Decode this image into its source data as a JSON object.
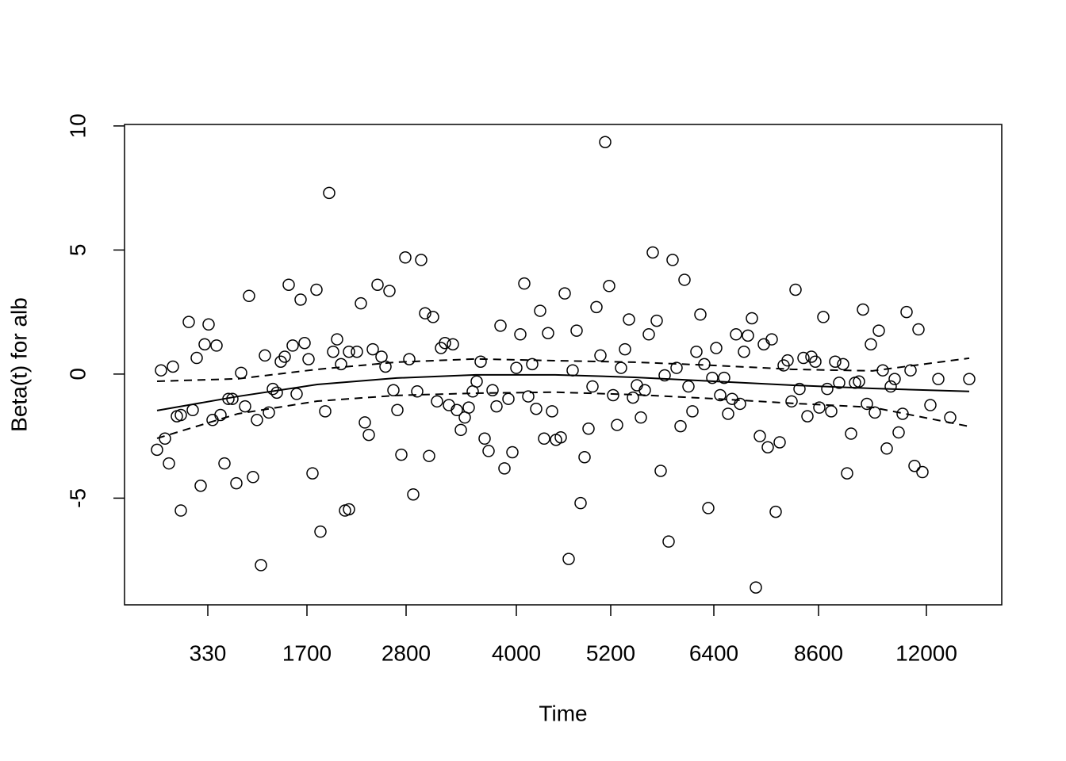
{
  "chart_data": {
    "type": "scatter",
    "xlabel": "Time",
    "ylabel": "Beta(t) for alb",
    "xlim": [
      -41,
      1065
    ],
    "xticks": [
      {
        "value": 64,
        "label": "330"
      },
      {
        "value": 189,
        "label": "1700"
      },
      {
        "value": 314,
        "label": "2800"
      },
      {
        "value": 453,
        "label": "4000"
      },
      {
        "value": 572,
        "label": "5200"
      },
      {
        "value": 702,
        "label": "6400"
      },
      {
        "value": 834,
        "label": "8600"
      },
      {
        "value": 970,
        "label": "12000"
      }
    ],
    "ylim": [
      -9.3,
      10.06
    ],
    "yticks": [
      -5,
      0,
      5,
      10
    ],
    "color": "#000000",
    "points": {
      "x": [
        0,
        5,
        10,
        15,
        20,
        25,
        30,
        30,
        40,
        45,
        50,
        55,
        60,
        65,
        70,
        75,
        80,
        85,
        90,
        95,
        100,
        106,
        111,
        116,
        121,
        126,
        131,
        136,
        141,
        146,
        151,
        156,
        161,
        166,
        171,
        176,
        181,
        186,
        191,
        196,
        201,
        206,
        212,
        217,
        222,
        227,
        232,
        237,
        242,
        242,
        252,
        257,
        262,
        267,
        272,
        278,
        283,
        288,
        293,
        298,
        303,
        308,
        313,
        318,
        323,
        328,
        333,
        338,
        343,
        348,
        353,
        358,
        363,
        368,
        373,
        378,
        383,
        388,
        393,
        398,
        403,
        408,
        413,
        418,
        423,
        428,
        433,
        438,
        443,
        448,
        453,
        458,
        463,
        468,
        473,
        478,
        483,
        488,
        493,
        498,
        503,
        509,
        514,
        519,
        524,
        529,
        534,
        539,
        544,
        549,
        554,
        559,
        565,
        570,
        575,
        580,
        585,
        590,
        595,
        600,
        605,
        610,
        615,
        620,
        625,
        630,
        635,
        640,
        645,
        650,
        655,
        660,
        665,
        670,
        675,
        680,
        685,
        690,
        695,
        700,
        705,
        710,
        715,
        720,
        725,
        730,
        735,
        740,
        745,
        750,
        755,
        760,
        765,
        770,
        775,
        780,
        785,
        790,
        795,
        800,
        805,
        810,
        815,
        820,
        825,
        830,
        835,
        840,
        845,
        850,
        855,
        860,
        865,
        870,
        875,
        880,
        885,
        890,
        895,
        900,
        905,
        910,
        915,
        920,
        925,
        930,
        935,
        940,
        945,
        950,
        955,
        960,
        965,
        975,
        985,
        1000,
        1024
      ],
      "values": [
        -3.05,
        0.15,
        -2.6,
        -3.6,
        0.3,
        -1.7,
        -5.5,
        -1.65,
        2.1,
        -1.45,
        0.65,
        -4.5,
        1.2,
        2.0,
        -1.85,
        1.15,
        -1.65,
        -3.6,
        -1.0,
        -1.0,
        -4.4,
        0.05,
        -1.3,
        3.15,
        -4.15,
        -1.85,
        -7.7,
        0.75,
        -1.55,
        -0.6,
        -0.75,
        0.5,
        0.7,
        3.6,
        1.15,
        -0.8,
        3.0,
        1.25,
        0.6,
        -4.0,
        3.4,
        -6.35,
        -1.5,
        7.3,
        0.9,
        1.4,
        0.4,
        -5.5,
        0.9,
        -5.45,
        0.9,
        2.85,
        -1.95,
        -2.45,
        1.0,
        3.6,
        0.7,
        0.3,
        3.35,
        -0.65,
        -1.45,
        -3.25,
        4.7,
        0.6,
        -4.85,
        -0.7,
        4.6,
        2.45,
        -3.3,
        2.3,
        -1.1,
        1.05,
        1.25,
        -1.25,
        1.2,
        -1.45,
        -2.25,
        -1.75,
        -1.35,
        -0.7,
        -0.3,
        0.5,
        -2.6,
        -3.1,
        -0.65,
        -1.3,
        1.95,
        -3.8,
        -1.0,
        -3.15,
        0.25,
        1.6,
        3.65,
        -0.9,
        0.4,
        -1.4,
        2.55,
        -2.6,
        1.65,
        -1.5,
        -2.65,
        -2.55,
        3.25,
        -7.45,
        0.15,
        1.75,
        -5.2,
        -3.35,
        -2.2,
        -0.5,
        2.7,
        0.75,
        9.35,
        3.55,
        -0.85,
        -2.05,
        0.25,
        1.0,
        2.2,
        -0.95,
        -0.45,
        -1.75,
        -0.65,
        1.6,
        4.9,
        2.15,
        -3.9,
        -0.05,
        -6.75,
        4.6,
        0.25,
        -2.1,
        3.8,
        -0.5,
        -1.5,
        0.9,
        2.4,
        0.4,
        -5.4,
        -0.15,
        1.05,
        -0.85,
        -0.15,
        -1.6,
        -1.0,
        1.6,
        -1.2,
        0.9,
        1.55,
        2.25,
        -8.6,
        -2.5,
        1.2,
        -2.95,
        1.4,
        -5.55,
        -2.75,
        0.35,
        0.55,
        -1.1,
        3.4,
        -0.6,
        0.65,
        -1.7,
        0.7,
        0.5,
        -1.35,
        2.3,
        -0.6,
        -1.5,
        0.5,
        -0.35,
        0.4,
        -4.0,
        -2.4,
        -0.35,
        -0.3,
        2.6,
        -1.2,
        1.2,
        -1.55,
        1.75,
        0.15,
        -3.0,
        -0.5,
        -0.2,
        -2.35,
        -1.6,
        2.5,
        0.15,
        -3.7,
        1.8,
        -3.95,
        -1.25,
        -0.2,
        -1.75,
        -0.2
      ]
    },
    "fit": {
      "x": [
        0,
        102,
        202,
        302,
        402,
        502,
        602,
        702,
        802,
        902,
        1024
      ],
      "values": [
        -1.47,
        -0.9,
        -0.42,
        -0.16,
        -0.03,
        -0.03,
        -0.13,
        -0.29,
        -0.45,
        -0.58,
        -0.7
      ]
    },
    "upper": {
      "x": [
        0,
        102,
        202,
        302,
        402,
        502,
        602,
        702,
        802,
        902,
        1024
      ],
      "values": [
        -0.29,
        -0.19,
        0.19,
        0.48,
        0.61,
        0.54,
        0.48,
        0.35,
        0.19,
        0.13,
        0.64
      ]
    },
    "lower": {
      "x": [
        0,
        102,
        202,
        302,
        402,
        502,
        602,
        702,
        802,
        902,
        1024
      ],
      "values": [
        -2.59,
        -1.6,
        -1.09,
        -0.86,
        -0.77,
        -0.73,
        -0.83,
        -0.99,
        -1.18,
        -1.34,
        -2.11
      ]
    }
  }
}
